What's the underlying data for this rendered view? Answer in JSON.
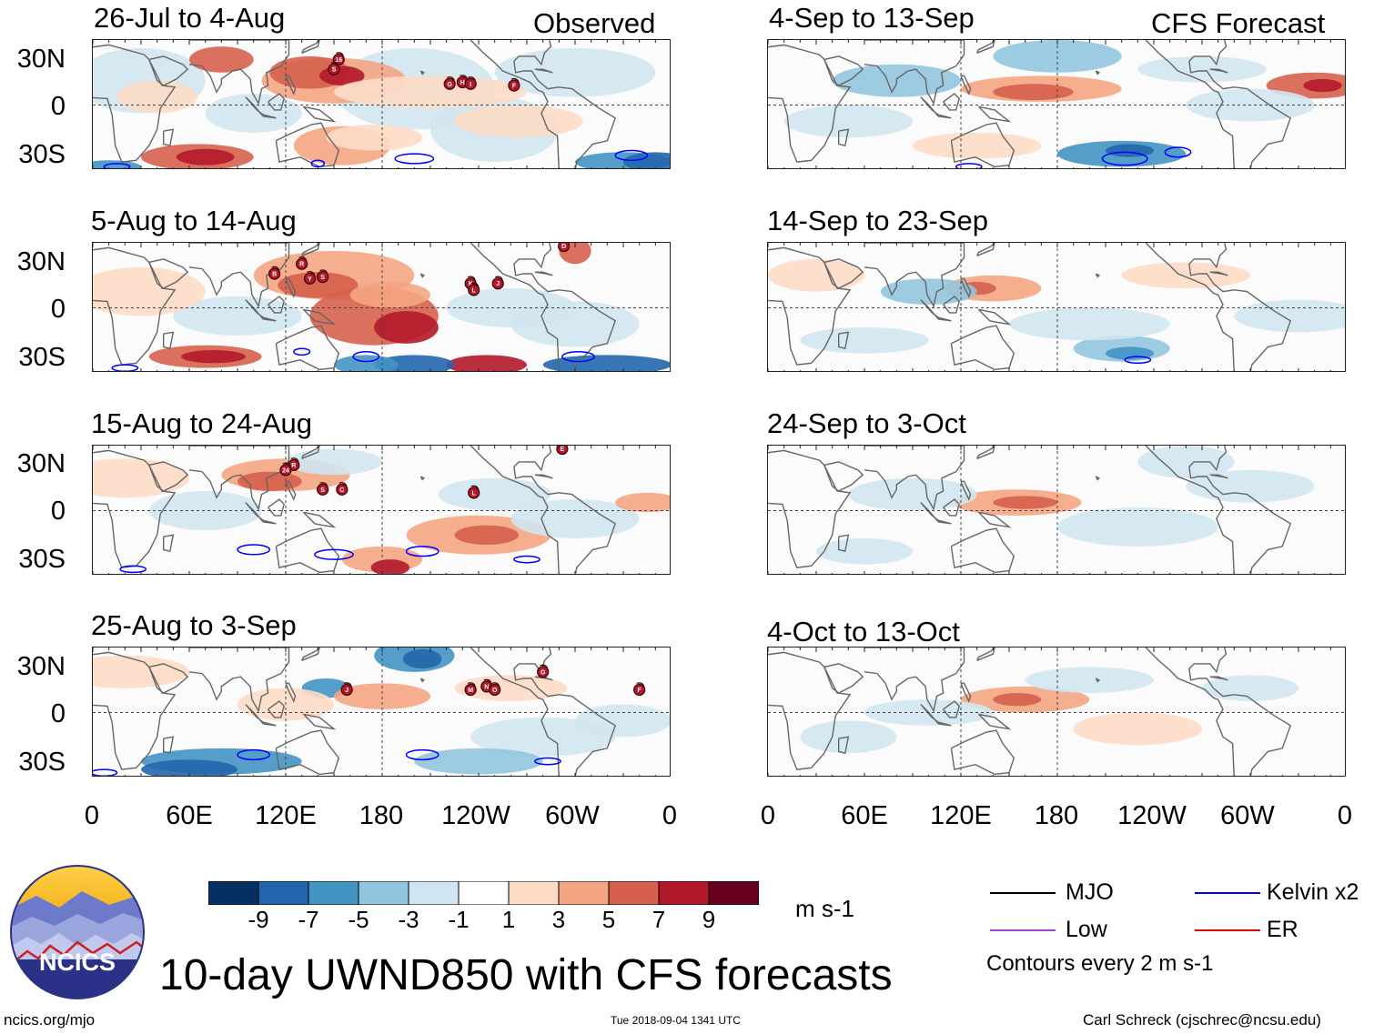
{
  "panels_left": [
    {
      "title": "26-Jul to 4-Aug",
      "tag": "Observed"
    },
    {
      "title": "5-Aug to 14-Aug",
      "tag": ""
    },
    {
      "title": "15-Aug to 24-Aug",
      "tag": ""
    },
    {
      "title": "25-Aug to 3-Sep",
      "tag": ""
    }
  ],
  "panels_right": [
    {
      "title": "4-Sep to 13-Sep",
      "tag": "CFS Forecast"
    },
    {
      "title": "14-Sep to 23-Sep",
      "tag": ""
    },
    {
      "title": "24-Sep to 3-Oct",
      "tag": ""
    },
    {
      "title": "4-Oct to 13-Oct",
      "tag": ""
    }
  ],
  "lat_labels": [
    "30N",
    "0",
    "30S"
  ],
  "lon_labels": [
    "0",
    "60E",
    "120E",
    "180",
    "120W",
    "60W",
    "0"
  ],
  "colorbar": {
    "ticks": [
      "-9",
      "-7",
      "-5",
      "-3",
      "-1",
      "1",
      "3",
      "5",
      "7",
      "9"
    ],
    "units": "m s-1",
    "colors": [
      "#053061",
      "#2166ac",
      "#4393c3",
      "#92c5de",
      "#d1e5f0",
      "#ffffff",
      "#fddbc7",
      "#f4a582",
      "#d6604d",
      "#b2182b",
      "#67001f"
    ]
  },
  "legend": {
    "items": [
      {
        "label": "MJO",
        "color": "#000000"
      },
      {
        "label": "Kelvin x2",
        "color": "#0000ff"
      },
      {
        "label": "Low",
        "color": "#a040e0"
      },
      {
        "label": "ER",
        "color": "#dd0000"
      }
    ],
    "note": "Contours every 2 m s-1"
  },
  "logo_text": "NCICS",
  "main_title": "10-day UWND850 with CFS forecasts",
  "footer": {
    "left": "ncics.org/mjo",
    "center": "Tue 2018-09-04 1341 UTC",
    "right": "Carl Schreck (cjschrec@ncsu.edu)"
  },
  "storm_labels": {
    "p0": [
      "16",
      "S",
      "G",
      "H",
      "I",
      "F"
    ],
    "p1": [
      "D",
      "R",
      "B",
      "Y",
      "S",
      "K",
      "L",
      "J"
    ],
    "p2": [
      "E",
      "R",
      "24",
      "S",
      "C",
      "L"
    ],
    "p3": [
      "J",
      "M",
      "N",
      "O",
      "G",
      "F"
    ]
  }
}
